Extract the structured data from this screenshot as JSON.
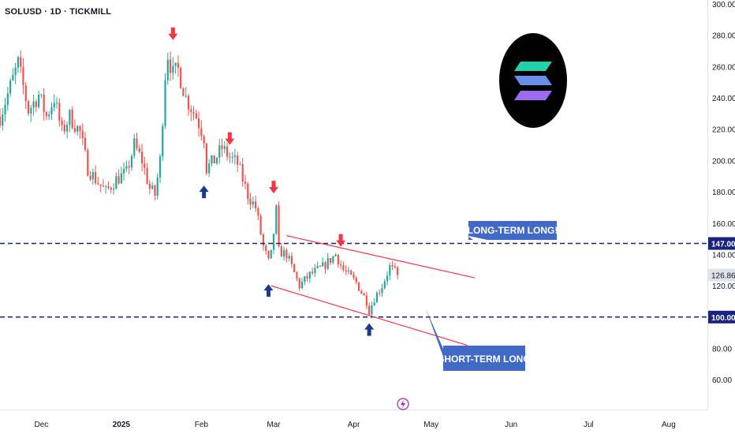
{
  "header": {
    "symbol_title": "SOLUSD · 1D · TICKMILL"
  },
  "colors": {
    "up": "#26a69a",
    "down": "#ef5350",
    "level_line": "#1a237e",
    "trend_line": "#f23645",
    "callout": "#4169c6",
    "arrow_down": "#f23645",
    "arrow_up": "#1a3a8c",
    "logo_bg": "#000000",
    "logo_bar_top": "#22d1ab",
    "logo_bar_mid": "#6a8ee8",
    "logo_bar_bot": "#9b6cf0"
  },
  "chart_data": {
    "type": "candlestick",
    "y_axis": {
      "min": 50,
      "max": 300,
      "ticks": [
        "60.00",
        "80.00",
        "100.00",
        "120.00",
        "140.00",
        "160.00",
        "180.00",
        "200.00",
        "220.00",
        "240.00",
        "260.00",
        "280.00",
        "300.00"
      ]
    },
    "x_axis": {
      "labels": [
        "Dec",
        "2025",
        "Feb",
        "Mar",
        "Apr",
        "May",
        "Jun",
        "Jul",
        "Aug"
      ],
      "label_dates": [
        "2024-12-01",
        "2025-01-01",
        "2025-02-01",
        "2025-03-01",
        "2025-04-01",
        "2025-05-01",
        "2025-06-01",
        "2025-07-01",
        "2025-08-01"
      ],
      "start": "2024-11-15",
      "end": "2025-08-16"
    },
    "price_label": {
      "value": 126.86,
      "text": "126.86"
    },
    "levels": [
      {
        "value": 147,
        "text": "147.00"
      },
      {
        "value": 100,
        "text": "100.00"
      }
    ],
    "trendlines": [
      {
        "from": [
          "2025-03-06",
          152
        ],
        "to": [
          "2025-05-18",
          125
        ]
      },
      {
        "from": [
          "2025-02-28",
          120
        ],
        "to": [
          "2025-05-15",
          82
        ]
      }
    ],
    "callouts": [
      {
        "text": "LONG-TERM LONG!",
        "pointer": [
          "2025-05-15",
          152
        ]
      },
      {
        "text": "SHORT-TERM LONG",
        "pointer": [
          "2025-04-29",
          105
        ]
      }
    ],
    "arrows_down": [
      {
        "date": "2025-01-21",
        "value": 281
      },
      {
        "date": "2025-02-12",
        "value": 214
      },
      {
        "date": "2025-03-01",
        "value": 183
      },
      {
        "date": "2025-03-27",
        "value": 149
      }
    ],
    "arrows_up": [
      {
        "date": "2025-02-02",
        "value": 180
      },
      {
        "date": "2025-02-27",
        "value": 117
      },
      {
        "date": "2025-04-07",
        "value": 92
      }
    ],
    "key_points": [
      [
        "2024-11-15",
        228
      ],
      [
        "2024-11-20",
        252
      ],
      [
        "2024-11-22",
        262
      ],
      [
        "2024-11-26",
        232
      ],
      [
        "2024-11-30",
        242
      ],
      [
        "2024-12-03",
        228
      ],
      [
        "2024-12-06",
        240
      ],
      [
        "2024-12-09",
        218
      ],
      [
        "2024-12-12",
        228
      ],
      [
        "2024-12-16",
        218
      ],
      [
        "2024-12-19",
        195
      ],
      [
        "2024-12-22",
        188
      ],
      [
        "2024-12-26",
        180
      ],
      [
        "2024-12-30",
        188
      ],
      [
        "2025-01-03",
        192
      ],
      [
        "2025-01-06",
        210
      ],
      [
        "2025-01-09",
        200
      ],
      [
        "2025-01-12",
        182
      ],
      [
        "2025-01-14",
        178
      ],
      [
        "2025-01-16",
        200
      ],
      [
        "2025-01-18",
        255
      ],
      [
        "2025-01-19",
        268
      ],
      [
        "2025-01-21",
        255
      ],
      [
        "2025-01-23",
        258
      ],
      [
        "2025-01-26",
        240
      ],
      [
        "2025-01-30",
        228
      ],
      [
        "2025-02-02",
        215
      ],
      [
        "2025-02-03",
        195
      ],
      [
        "2025-02-06",
        200
      ],
      [
        "2025-02-09",
        208
      ],
      [
        "2025-02-12",
        202
      ],
      [
        "2025-02-15",
        198
      ],
      [
        "2025-02-19",
        178
      ],
      [
        "2025-02-22",
        170
      ],
      [
        "2025-02-25",
        145
      ],
      [
        "2025-02-27",
        135
      ],
      [
        "2025-02-28",
        140
      ],
      [
        "2025-03-02",
        168
      ],
      [
        "2025-03-03",
        142
      ],
      [
        "2025-03-06",
        140
      ],
      [
        "2025-03-09",
        128
      ],
      [
        "2025-03-11",
        120
      ],
      [
        "2025-03-15",
        127
      ],
      [
        "2025-03-20",
        132
      ],
      [
        "2025-03-25",
        140
      ],
      [
        "2025-03-28",
        130
      ],
      [
        "2025-04-02",
        122
      ],
      [
        "2025-04-06",
        110
      ],
      [
        "2025-04-07",
        104
      ],
      [
        "2025-04-09",
        112
      ],
      [
        "2025-04-12",
        120
      ],
      [
        "2025-04-15",
        132
      ],
      [
        "2025-04-18",
        127
      ]
    ]
  }
}
